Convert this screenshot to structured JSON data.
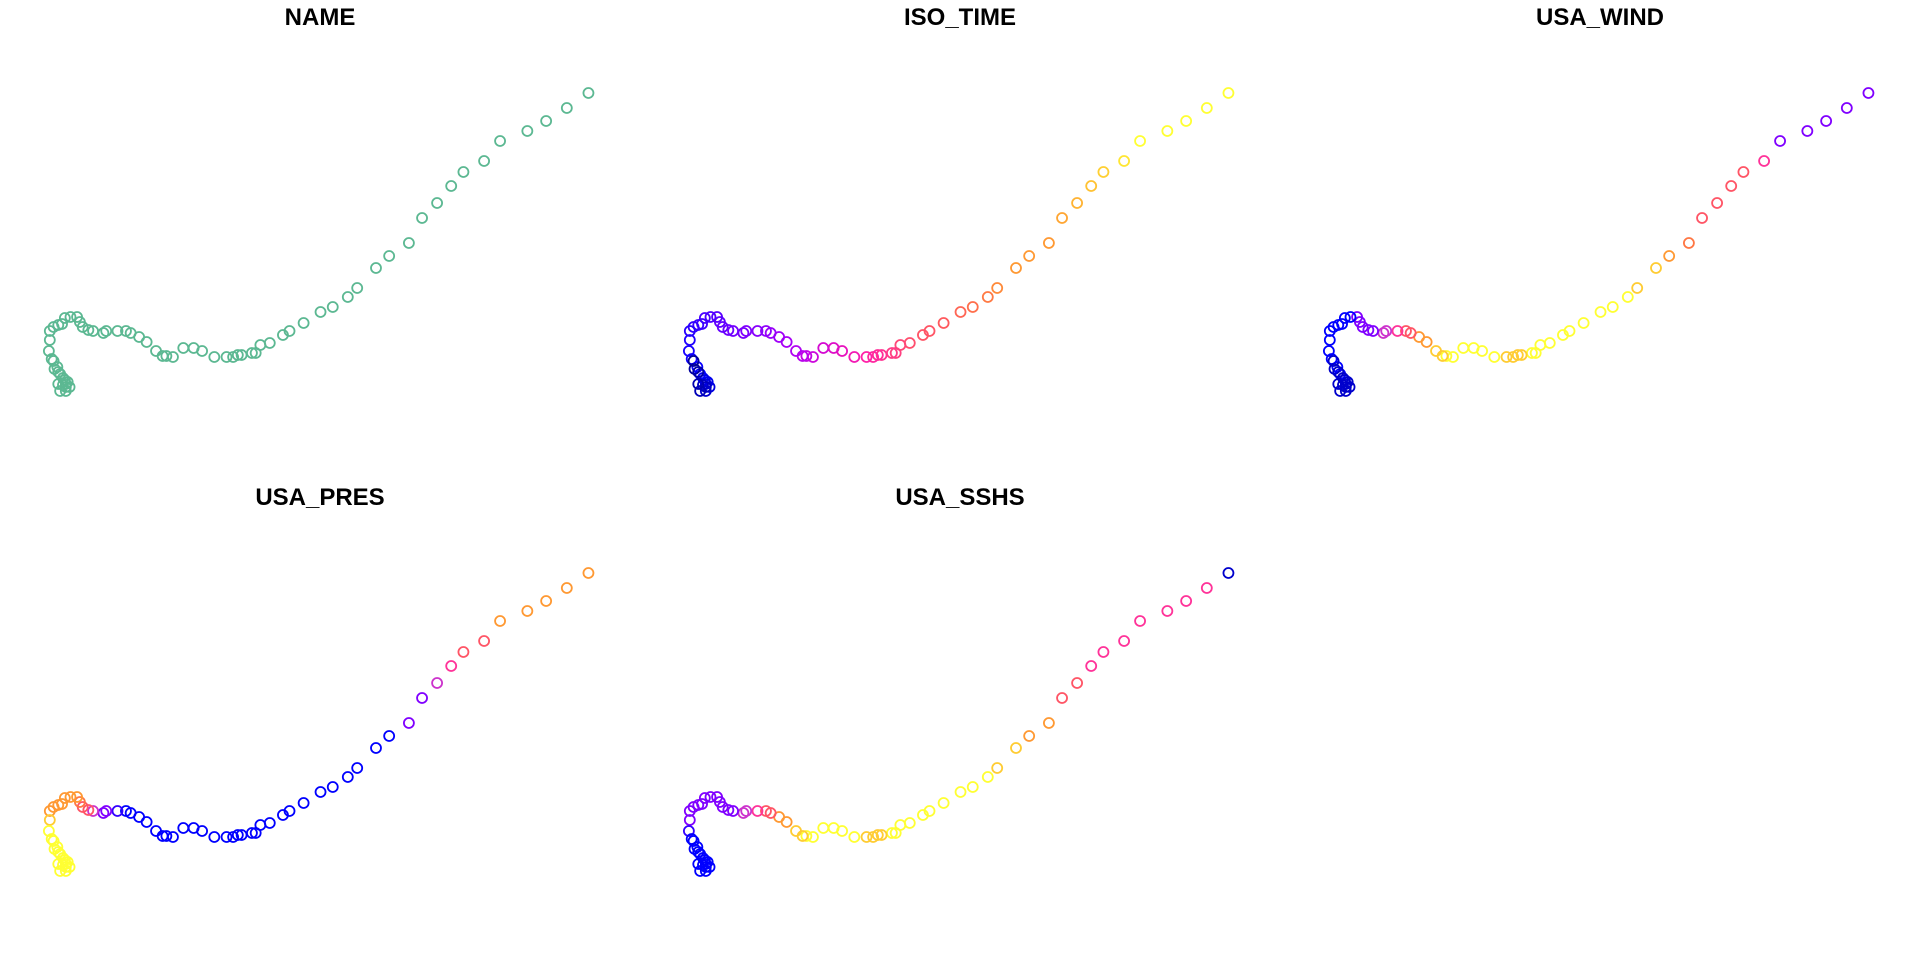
{
  "chart_data": {
    "type": "scatter",
    "layout": "small-multiples",
    "grid": false,
    "axes_visible": false,
    "track": {
      "x": [
        626,
        603,
        581,
        561,
        532,
        515,
        493,
        480,
        465,
        449,
        435,
        414,
        400,
        380,
        370,
        354,
        341,
        323,
        308,
        301,
        287,
        277,
        272,
        268,
        257,
        253,
        248,
        241,
        228,
        215,
        206,
        195,
        184,
        177,
        173,
        166,
        156,
        148,
        139,
        134,
        125,
        113,
        110,
        99,
        94,
        88,
        85,
        82,
        75,
        69,
        66,
        62,
        57,
        53,
        53,
        52,
        55,
        61,
        64,
        67,
        72,
        69,
        74,
        70,
        70,
        67,
        70,
        64,
        62,
        62,
        58,
        57
      ],
      "y": [
        93,
        108,
        121,
        131,
        141,
        161,
        172,
        186,
        203,
        218,
        243,
        256,
        268,
        288,
        297,
        307,
        312,
        323,
        331,
        335,
        343,
        345,
        353,
        353,
        355,
        355,
        357,
        357,
        357,
        351,
        348,
        348,
        357,
        356,
        356,
        351,
        342,
        337,
        333,
        331,
        331,
        331,
        333,
        331,
        330,
        327,
        322,
        317,
        317,
        318,
        324,
        325,
        327,
        331,
        340,
        351,
        359,
        367,
        374,
        378,
        382,
        380,
        387,
        384,
        391,
        385,
        387,
        391,
        384,
        372,
        369,
        361
      ]
    },
    "panels": [
      {
        "title": "NAME",
        "colors": [
          "#5cb892",
          "#5cb892",
          "#5cb892",
          "#5cb892",
          "#5cb892",
          "#5cb892",
          "#5cb892",
          "#5cb892",
          "#5cb892",
          "#5cb892",
          "#5cb892",
          "#5cb892",
          "#5cb892",
          "#5cb892",
          "#5cb892",
          "#5cb892",
          "#5cb892",
          "#5cb892",
          "#5cb892",
          "#5cb892",
          "#5cb892",
          "#5cb892",
          "#5cb892",
          "#5cb892",
          "#5cb892",
          "#5cb892",
          "#5cb892",
          "#5cb892",
          "#5cb892",
          "#5cb892",
          "#5cb892",
          "#5cb892",
          "#5cb892",
          "#5cb892",
          "#5cb892",
          "#5cb892",
          "#5cb892",
          "#5cb892",
          "#5cb892",
          "#5cb892",
          "#5cb892",
          "#5cb892",
          "#5cb892",
          "#5cb892",
          "#5cb892",
          "#5cb892",
          "#5cb892",
          "#5cb892",
          "#5cb892",
          "#5cb892",
          "#5cb892",
          "#5cb892",
          "#5cb892",
          "#5cb892",
          "#5cb892",
          "#5cb892",
          "#5cb892",
          "#5cb892",
          "#5cb892",
          "#5cb892",
          "#5cb892",
          "#5cb892",
          "#5cb892",
          "#5cb892",
          "#5cb892",
          "#5cb892",
          "#5cb892",
          "#5cb892",
          "#5cb892",
          "#5cb892",
          "#5cb892",
          "#5cb892"
        ]
      },
      {
        "title": "ISO_TIME",
        "colors": [
          "#ffff33",
          "#ffff33",
          "#ffff33",
          "#ffff33",
          "#ffff33",
          "#ffe633",
          "#ffd033",
          "#ffc233",
          "#ffb333",
          "#ffa633",
          "#ff9933",
          "#ff9933",
          "#ff9933",
          "#ff8a3a",
          "#ff7a44",
          "#ff6f4c",
          "#ff6655",
          "#ff5a5e",
          "#ff5566",
          "#ff5566",
          "#ff4f6e",
          "#ff4878",
          "#ff4080",
          "#ff3b88",
          "#ff3391",
          "#ff2e99",
          "#ff28a0",
          "#ff22a8",
          "#f21ab4",
          "#e812be",
          "#de0ec8",
          "#d40ad2",
          "#cc08dc",
          "#c206e4",
          "#b804ec",
          "#b004f2",
          "#a802f6",
          "#a000f8",
          "#9800fa",
          "#9000fb",
          "#8800fc",
          "#8000fd",
          "#7a00fe",
          "#7400ff",
          "#6e00ff",
          "#6600ff",
          "#6000ff",
          "#5800ff",
          "#5000ff",
          "#4800ff",
          "#4000ff",
          "#3800ff",
          "#3000ff",
          "#2800ff",
          "#2000ff",
          "#1800ff",
          "#1000ff",
          "#0800ff",
          "#0000ff",
          "#0000f8",
          "#0000f0",
          "#0000e8",
          "#0000e0",
          "#0000d8",
          "#0000d0",
          "#0000c8",
          "#0000c0",
          "#0000b8",
          "#0000b0",
          "#0000a8",
          "#0000a0",
          "#000099"
        ]
      },
      {
        "title": "USA_WIND",
        "colors": [
          "#8000ff",
          "#8000ff",
          "#8000ff",
          "#8000ff",
          "#8000ff",
          "#ff3399",
          "#ff5566",
          "#ff5566",
          "#ff5566",
          "#ff5566",
          "#ff7744",
          "#ff9933",
          "#ffcc33",
          "#ffcc33",
          "#ffff33",
          "#ffff33",
          "#ffff33",
          "#ffff33",
          "#ffff33",
          "#ffff33",
          "#ffff33",
          "#ffff33",
          "#ffff33",
          "#ffff33",
          "#ffcc33",
          "#ffcc33",
          "#ffcc33",
          "#ffcc33",
          "#ffff33",
          "#ffff33",
          "#ffff33",
          "#ffff33",
          "#ffff33",
          "#ffff33",
          "#ffcc33",
          "#ffcc33",
          "#ff9933",
          "#ff9933",
          "#ff5566",
          "#ff5566",
          "#ff3399",
          "#cc33cc",
          "#cc33cc",
          "#8000ff",
          "#8000ff",
          "#8000ff",
          "#8000ff",
          "#8000ff",
          "#0000ff",
          "#0000ff",
          "#0000ff",
          "#0000ff",
          "#0000ff",
          "#0000ff",
          "#0000ff",
          "#0000ff",
          "#0000ff",
          "#0000ff",
          "#0000ff",
          "#0000cc",
          "#0000cc",
          "#0000cc",
          "#0000cc",
          "#0000cc",
          "#0000cc",
          "#0000cc",
          "#0000cc",
          "#0000cc",
          "#0000cc",
          "#0000cc",
          "#0000cc",
          "#0000cc"
        ]
      },
      {
        "title": "USA_PRES",
        "colors": [
          "#ff9933",
          "#ff9933",
          "#ff9933",
          "#ff9933",
          "#ff9933",
          "#ff5566",
          "#ff5566",
          "#ff3399",
          "#cc33cc",
          "#8000ff",
          "#8000ff",
          "#0000ff",
          "#0000ff",
          "#0000ff",
          "#0000ff",
          "#0000ff",
          "#0000ff",
          "#0000ff",
          "#0000ff",
          "#0000ff",
          "#0000ff",
          "#0000ff",
          "#0000ff",
          "#0000ff",
          "#0000ff",
          "#0000ff",
          "#0000ff",
          "#0000ff",
          "#0000ff",
          "#0000ff",
          "#0000ff",
          "#0000ff",
          "#0000ff",
          "#0000ff",
          "#0000ff",
          "#0000ff",
          "#0000ff",
          "#0000ff",
          "#0000ff",
          "#0000ff",
          "#3300ff",
          "#8000ff",
          "#8000ff",
          "#cc33cc",
          "#ff5566",
          "#ff5566",
          "#ff7744",
          "#ff9933",
          "#ff9933",
          "#ff9933",
          "#ff9933",
          "#ff9933",
          "#ff9933",
          "#ff9933",
          "#ffcc33",
          "#ffff33",
          "#ffff33",
          "#ffff33",
          "#ffff33",
          "#ffff33",
          "#ffff33",
          "#ffff33",
          "#ffff33",
          "#ffff33",
          "#ffff33",
          "#ffff33",
          "#ffff33",
          "#ffff33",
          "#ffff33",
          "#ffff33",
          "#ffff33",
          "#ffff33"
        ]
      },
      {
        "title": "USA_SSHS",
        "colors": [
          "#0000cc",
          "#ff3399",
          "#ff3399",
          "#ff3399",
          "#ff3399",
          "#ff3399",
          "#ff3399",
          "#ff3399",
          "#ff5566",
          "#ff5566",
          "#ff9933",
          "#ff9933",
          "#ffcc33",
          "#ffcc33",
          "#ffff33",
          "#ffff33",
          "#ffff33",
          "#ffff33",
          "#ffff33",
          "#ffff33",
          "#ffff33",
          "#ffff33",
          "#ffff33",
          "#ffff33",
          "#ffcc33",
          "#ffcc33",
          "#ffcc33",
          "#ffcc33",
          "#ffff33",
          "#ffff33",
          "#ffff33",
          "#ffff33",
          "#ffff33",
          "#ffff33",
          "#ffcc33",
          "#ffcc33",
          "#ff9933",
          "#ff9933",
          "#ff5566",
          "#ff5566",
          "#ff3399",
          "#cc33cc",
          "#cc33cc",
          "#8000ff",
          "#8000ff",
          "#8000ff",
          "#8000ff",
          "#8000ff",
          "#8000ff",
          "#8000ff",
          "#8000ff",
          "#8000ff",
          "#8000ff",
          "#8000ff",
          "#8000ff",
          "#3300ff",
          "#0000ff",
          "#0000ff",
          "#0000ff",
          "#0000ff",
          "#0000ff",
          "#0000ff",
          "#0000ff",
          "#0000ff",
          "#0000ff",
          "#0000ff",
          "#0000ff",
          "#0000ff",
          "#0000ff",
          "#0000ff",
          "#0000ff",
          "#0000ff"
        ]
      }
    ]
  }
}
